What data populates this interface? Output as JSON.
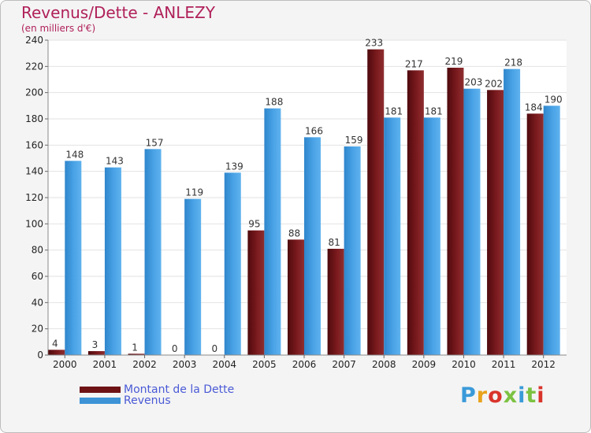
{
  "header": {
    "title": "Revenus/Dette - ANLEZY",
    "subtitle": "(en milliers d'€)"
  },
  "legend": {
    "debt_label": "Montant de la Dette",
    "revenue_label": "Revenus"
  },
  "logo": {
    "letters": [
      "P",
      "r",
      "o",
      "x",
      "i",
      "t",
      "i"
    ],
    "colors": [
      "#3a9ad9",
      "#e8a21b",
      "#d9342b",
      "#7cc242",
      "#3a9ad9",
      "#7cc242",
      "#d9342b"
    ]
  },
  "colors": {
    "debt": "#6e1216",
    "debt_light": "#8c2a2c",
    "revenue": "#3d93d6",
    "revenue_light": "#5aabea",
    "label_text": "#333333",
    "axis_text": "#222222"
  },
  "chart_data": {
    "type": "bar",
    "categories": [
      "2000",
      "2001",
      "2002",
      "2003",
      "2004",
      "2005",
      "2006",
      "2007",
      "2008",
      "2009",
      "2010",
      "2011",
      "2012"
    ],
    "series": [
      {
        "name": "Montant de la Dette",
        "values": [
          4,
          3,
          1,
          0,
          0,
          95,
          88,
          81,
          233,
          217,
          219,
          202,
          184
        ]
      },
      {
        "name": "Revenus",
        "values": [
          148,
          143,
          157,
          119,
          139,
          188,
          166,
          159,
          181,
          181,
          203,
          218,
          190
        ]
      }
    ],
    "ylim": [
      0,
      240
    ],
    "yticks": [
      0,
      20,
      40,
      60,
      80,
      100,
      120,
      140,
      160,
      180,
      200,
      220,
      240
    ],
    "grid": true,
    "legend_position": "bottom-left"
  }
}
